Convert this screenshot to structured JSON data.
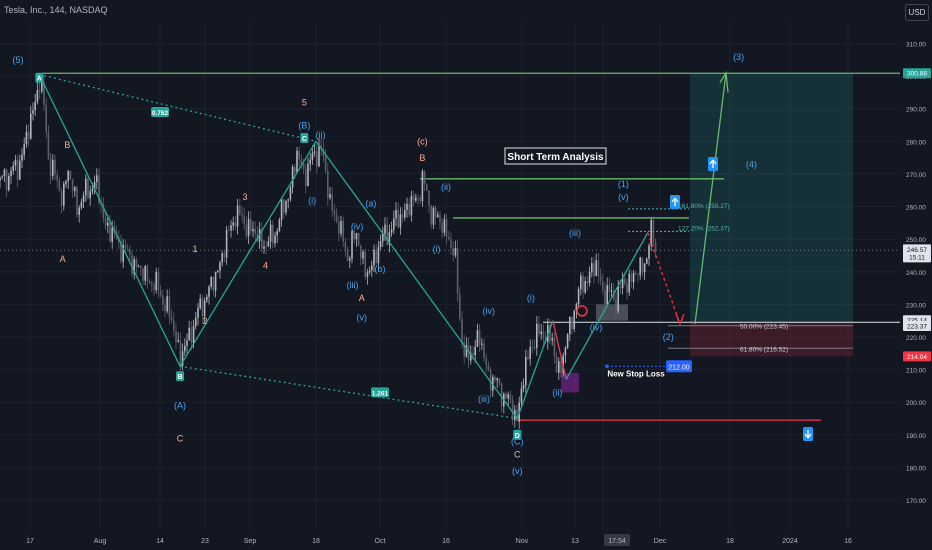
{
  "header": {
    "symbol_title": "Tesla, Inc., 144, NASDAQ",
    "currency": "USD"
  },
  "chart_data": {
    "type": "candlestick",
    "title": "Short Term Analysis",
    "y_axis": {
      "ticks": [
        170,
        180,
        190,
        200,
        210,
        220,
        230,
        240,
        250,
        260,
        270,
        280,
        290,
        300,
        310
      ],
      "ylim": [
        163,
        315
      ],
      "side": "right"
    },
    "x_axis": {
      "tick_labels": [
        "17",
        "Aug",
        "14",
        "23",
        "Sep",
        "18",
        "Oct",
        "16",
        "Nov",
        "13",
        "17:54",
        "Dec",
        "18",
        "2024",
        "16"
      ]
    },
    "price_badges": [
      {
        "label": "300.88",
        "value": 300.88,
        "color": "#26a69a"
      },
      {
        "label": "246.57",
        "value": 246.57,
        "color": "#e0e3eb",
        "sub": "15:11"
      },
      {
        "label": "225.14",
        "value": 225.14,
        "color": "#e0e3eb"
      },
      {
        "label": "223.37",
        "value": 223.37,
        "color": "#e0e3eb"
      },
      {
        "label": "214.04",
        "value": 214.04,
        "color": "#f23645"
      }
    ],
    "price_path": [
      {
        "date": "Jul 12",
        "price": 268
      },
      {
        "date": "Jul 15",
        "price": 272
      },
      {
        "date": "Jul 17",
        "price": 285
      },
      {
        "date": "Jul 19",
        "price": 299
      },
      {
        "date": "Jul 20",
        "price": 290
      },
      {
        "date": "Jul 21",
        "price": 275
      },
      {
        "date": "Jul 24",
        "price": 262
      },
      {
        "date": "Jul 25",
        "price": 272
      },
      {
        "date": "Jul 27",
        "price": 260
      },
      {
        "date": "Jul 31",
        "price": 268
      },
      {
        "date": "Aug 2",
        "price": 255
      },
      {
        "date": "Aug 7",
        "price": 245
      },
      {
        "date": "Aug 10",
        "price": 240
      },
      {
        "date": "Aug 14",
        "price": 234
      },
      {
        "date": "Aug 17",
        "price": 222
      },
      {
        "date": "Aug 18",
        "price": 213
      },
      {
        "date": "Aug 21",
        "price": 225
      },
      {
        "date": "Aug 23",
        "price": 232
      },
      {
        "date": "Aug 25",
        "price": 238
      },
      {
        "date": "Aug 29",
        "price": 258
      },
      {
        "date": "Aug 31",
        "price": 255
      },
      {
        "date": "Sep 5",
        "price": 248
      },
      {
        "date": "Sep 7",
        "price": 251
      },
      {
        "date": "Sep 11",
        "price": 264
      },
      {
        "date": "Sep 13",
        "price": 276
      },
      {
        "date": "Sep 15",
        "price": 270
      },
      {
        "date": "Sep 19",
        "price": 279
      },
      {
        "date": "Sep 21",
        "price": 262
      },
      {
        "date": "Sep 25",
        "price": 245
      },
      {
        "date": "Sep 27",
        "price": 252
      },
      {
        "date": "Sep 29",
        "price": 238
      },
      {
        "date": "Oct 2",
        "price": 249
      },
      {
        "date": "Oct 5",
        "price": 255
      },
      {
        "date": "Oct 10",
        "price": 263
      },
      {
        "date": "Oct 11",
        "price": 268
      },
      {
        "date": "Oct 13",
        "price": 258
      },
      {
        "date": "Oct 16",
        "price": 253
      },
      {
        "date": "Oct 18",
        "price": 243
      },
      {
        "date": "Oct 19",
        "price": 225
      },
      {
        "date": "Oct 20",
        "price": 212
      },
      {
        "date": "Oct 23",
        "price": 220
      },
      {
        "date": "Oct 25",
        "price": 208
      },
      {
        "date": "Oct 27",
        "price": 205
      },
      {
        "date": "Oct 30",
        "price": 198
      },
      {
        "date": "Oct 31",
        "price": 195
      },
      {
        "date": "Nov 1",
        "price": 205
      },
      {
        "date": "Nov 3",
        "price": 218
      },
      {
        "date": "Nov 6",
        "price": 222
      },
      {
        "date": "Nov 8",
        "price": 218
      },
      {
        "date": "Nov 9",
        "price": 209
      },
      {
        "date": "Nov 10",
        "price": 212
      },
      {
        "date": "Nov 13",
        "price": 230
      },
      {
        "date": "Nov 14",
        "price": 236
      },
      {
        "date": "Nov 16",
        "price": 242
      },
      {
        "date": "Nov 17",
        "price": 234
      },
      {
        "date": "Nov 20",
        "price": 232
      },
      {
        "date": "Nov 22",
        "price": 236
      },
      {
        "date": "Nov 24",
        "price": 238
      },
      {
        "date": "Nov 27",
        "price": 242
      },
      {
        "date": "Nov 28",
        "price": 247
      },
      {
        "date": "Nov 29",
        "price": 252
      },
      {
        "date": "Nov 30",
        "price": 246.57
      }
    ],
    "wave_labels": [
      {
        "text": "(5)",
        "date": "Jul 15",
        "price": 304,
        "color": "#42a5f5"
      },
      {
        "text": "B",
        "date": "Jul 25",
        "price": 278,
        "color": "#ffab91"
      },
      {
        "text": "A",
        "date": "Jul 24",
        "price": 243,
        "color": "#ffab91"
      },
      {
        "text": "(A)",
        "date": "Aug 18",
        "price": 198,
        "color": "#42a5f5"
      },
      {
        "text": "C",
        "date": "Aug 18",
        "price": 188,
        "color": "#ffab91"
      },
      {
        "text": "1",
        "date": "Aug 21",
        "price": 246,
        "color": "#ffab91"
      },
      {
        "text": "2",
        "date": "Aug 23",
        "price": 224,
        "color": "#ffab91"
      },
      {
        "text": "3",
        "date": "Aug 31",
        "price": 262,
        "color": "#ffab91"
      },
      {
        "text": "4",
        "date": "Sep 5",
        "price": 241,
        "color": "#ffab91"
      },
      {
        "text": "5",
        "date": "Sep 15",
        "price": 291,
        "color": "#ffab91"
      },
      {
        "text": "(B)",
        "date": "Sep 15",
        "price": 284,
        "color": "#42a5f5"
      },
      {
        "text": "(ii)",
        "date": "Sep 19",
        "price": 281,
        "color": "#42a5f5"
      },
      {
        "text": "(i)",
        "date": "Sep 17",
        "price": 261,
        "color": "#42a5f5"
      },
      {
        "text": "(iv)",
        "date": "Sep 27",
        "price": 253,
        "color": "#42a5f5"
      },
      {
        "text": "(iii)",
        "date": "Sep 26",
        "price": 235,
        "color": "#42a5f5"
      },
      {
        "text": "A",
        "date": "Sep 28",
        "price": 231,
        "color": "#ffab91"
      },
      {
        "text": "(v)",
        "date": "Sep 28",
        "price": 225,
        "color": "#42a5f5"
      },
      {
        "text": "(a)",
        "date": "Sep 30",
        "price": 260,
        "color": "#42a5f5"
      },
      {
        "text": "(b)",
        "date": "Oct 2",
        "price": 240,
        "color": "#42a5f5"
      },
      {
        "text": "(c)",
        "date": "Oct 11",
        "price": 279,
        "color": "#ffab91"
      },
      {
        "text": "B",
        "date": "Oct 11",
        "price": 274,
        "color": "#ffab91"
      },
      {
        "text": "(ii)",
        "date": "Oct 16",
        "price": 265,
        "color": "#42a5f5"
      },
      {
        "text": "(i)",
        "date": "Oct 14",
        "price": 246,
        "color": "#42a5f5"
      },
      {
        "text": "(iv)",
        "date": "Oct 25",
        "price": 227,
        "color": "#42a5f5"
      },
      {
        "text": "(iii)",
        "date": "Oct 24",
        "price": 200,
        "color": "#42a5f5"
      },
      {
        "text": "(C)",
        "date": "Oct 31",
        "price": 187,
        "color": "#42a5f5"
      },
      {
        "text": "C",
        "date": "Oct 31",
        "price": 183,
        "color": "#ffab91"
      },
      {
        "text": "(v)",
        "date": "Oct 31",
        "price": 178,
        "color": "#42a5f5"
      },
      {
        "text": "(i)",
        "date": "Nov 3",
        "price": 231,
        "color": "#42a5f5"
      },
      {
        "text": "(ii)",
        "date": "Nov 9",
        "price": 202,
        "color": "#42a5f5"
      },
      {
        "text": "(iii)",
        "date": "Nov 13",
        "price": 251,
        "color": "#42a5f5"
      },
      {
        "text": "(iv)",
        "date": "Nov 16",
        "price": 222,
        "color": "#42a5f5"
      },
      {
        "text": "(v)",
        "date": "Nov 22",
        "price": 262,
        "color": "#42a5f5"
      },
      {
        "text": "(1)",
        "date": "Nov 22",
        "price": 266,
        "color": "#42a5f5"
      },
      {
        "text": "(2)",
        "date": "Dec 3",
        "price": 219,
        "color": "#42a5f5"
      },
      {
        "text": "(3)",
        "date": "Dec 20",
        "price": 305,
        "color": "#42a5f5"
      },
      {
        "text": "(4)",
        "date": "Dec 23",
        "price": 272,
        "color": "#42a5f5"
      }
    ],
    "pivot_markers": [
      {
        "text": "A",
        "date": "Jul 19",
        "price": 299.5
      },
      {
        "text": "B",
        "date": "Aug 18",
        "price": 208
      },
      {
        "text": "C",
        "date": "Sep 15",
        "price": 281
      },
      {
        "text": "D",
        "date": "Oct 31",
        "price": 190
      }
    ],
    "ratio_badges": [
      {
        "text": "0.762",
        "date": "Aug 14",
        "price": 289
      },
      {
        "text": "1.261",
        "date": "Oct 2",
        "price": 203
      }
    ],
    "horizontal_levels": [
      {
        "price": 300.88,
        "color": "#66bb6a"
      },
      {
        "price": 268.5,
        "color": "#66bb6a"
      },
      {
        "price": 256.5,
        "color": "#66bb6a"
      },
      {
        "price": 194.5,
        "color": "#f23645"
      },
      {
        "price": 224.5,
        "color": "#e0e3eb"
      }
    ],
    "fib_levels": [
      {
        "label": "161.80% (259.27)",
        "price": 259.27
      },
      {
        "label": "127.20% (252.37)",
        "price": 252.37
      },
      {
        "label": "50.00% (223.45)",
        "price": 223.45
      },
      {
        "label": "61.80% (216.52)",
        "price": 216.52
      }
    ],
    "annotations": {
      "new_stop_loss": "New Stop Loss",
      "stop_price": "212.00",
      "date_hover": "17:54"
    }
  }
}
